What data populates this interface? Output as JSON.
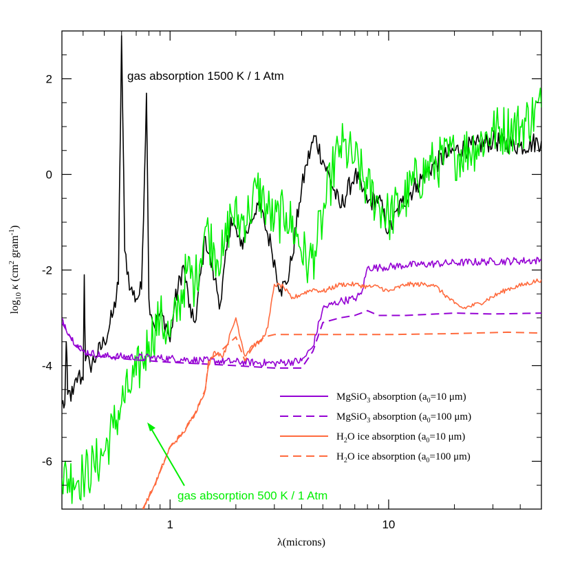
{
  "chart_data": {
    "type": "line",
    "x_scale": "log",
    "xlim": [
      0.32,
      50
    ],
    "ylim": [
      -7,
      3
    ],
    "xlabel": "λ(microns)",
    "ylabel": "log10 κ (cm² gram⁻¹)",
    "ylabel_parts": {
      "log": "log",
      "sub": "10",
      "kappa": "κ",
      "open": "(cm",
      "sup1": "2",
      "mid": " gram",
      "sup2": "-1",
      "close": ")"
    },
    "x_ticks": [
      {
        "value": 1,
        "label": "1"
      },
      {
        "value": 10,
        "label": "10"
      }
    ],
    "y_ticks": [
      {
        "value": 2,
        "label": "2"
      },
      {
        "value": 0,
        "label": "0"
      },
      {
        "value": -2,
        "label": "-2"
      },
      {
        "value": -4,
        "label": "-4"
      },
      {
        "value": -6,
        "label": "-6"
      }
    ],
    "annotations": {
      "gas_1500": "gas absorption 1500 K / 1 Atm",
      "gas_500": "gas absorption 500 K / 1 Atm"
    },
    "legend": {
      "placement": "lower-right",
      "entries": [
        {
          "pre": "MgSiO",
          "sub": "3",
          "post": " absorption (a",
          "sub2": "0",
          "post2": "=10 μm)",
          "color": "#9400d3",
          "dash": false
        },
        {
          "pre": "MgSiO",
          "sub": "3",
          "post": " absorption (a",
          "sub2": "0",
          "post2": "=100 μm)",
          "color": "#9400d3",
          "dash": true
        },
        {
          "pre": "H",
          "sub": "2",
          "post": "O ice absorption (a",
          "sub2": "0",
          "post2": "=10 μm)",
          "color": "#ff6a3d",
          "dash": false
        },
        {
          "pre": "H",
          "sub": "2",
          "post": "O ice absorption (a",
          "sub2": "0",
          "post2": "=100 μm)",
          "color": "#ff6a3d",
          "dash": true
        }
      ]
    },
    "series": [
      {
        "color": "#000000",
        "dash": false,
        "noise": 0.22,
        "points": [
          [
            0.32,
            -4.8
          ],
          [
            0.33,
            -4.8
          ],
          [
            0.335,
            -3.5
          ],
          [
            0.34,
            -4.6
          ],
          [
            0.36,
            -4.6
          ],
          [
            0.38,
            -4.2
          ],
          [
            0.4,
            -4.3
          ],
          [
            0.405,
            -2.1
          ],
          [
            0.41,
            -3.9
          ],
          [
            0.43,
            -4.0
          ],
          [
            0.46,
            -3.8
          ],
          [
            0.5,
            -3.5
          ],
          [
            0.55,
            -2.9
          ],
          [
            0.58,
            -2.3
          ],
          [
            0.6,
            2.9
          ],
          [
            0.62,
            -1.6
          ],
          [
            0.66,
            -2.4
          ],
          [
            0.7,
            -2.6
          ],
          [
            0.74,
            -2.4
          ],
          [
            0.78,
            1.7
          ],
          [
            0.8,
            -2.6
          ],
          [
            0.85,
            -3.2
          ],
          [
            0.9,
            -2.9
          ],
          [
            0.97,
            -3.2
          ],
          [
            1.0,
            -3.5
          ],
          [
            1.05,
            -2.7
          ],
          [
            1.15,
            -1.9
          ],
          [
            1.25,
            -3.0
          ],
          [
            1.3,
            -3.1
          ],
          [
            1.45,
            -1.3
          ],
          [
            1.6,
            -2.2
          ],
          [
            1.7,
            -2.7
          ],
          [
            1.9,
            -0.9
          ],
          [
            2.1,
            -1.5
          ],
          [
            2.3,
            -1.1
          ],
          [
            2.5,
            -0.6
          ],
          [
            2.7,
            -1.0
          ],
          [
            2.9,
            -1.5
          ],
          [
            3.2,
            -2.4
          ],
          [
            3.4,
            -2.3
          ],
          [
            3.6,
            -1.8
          ],
          [
            3.9,
            -0.6
          ],
          [
            4.2,
            0.2
          ],
          [
            4.6,
            0.8
          ],
          [
            5.0,
            0.3
          ],
          [
            5.4,
            -0.1
          ],
          [
            6.0,
            -0.7
          ],
          [
            7.0,
            0.0
          ],
          [
            8.0,
            -0.6
          ],
          [
            9.0,
            -0.5
          ],
          [
            10.0,
            -1.2
          ],
          [
            11.5,
            -0.6
          ],
          [
            13.5,
            -0.2
          ],
          [
            16,
            0.2
          ],
          [
            20,
            0.5
          ],
          [
            25,
            0.6
          ],
          [
            30,
            0.7
          ],
          [
            40,
            0.6
          ],
          [
            50,
            0.7
          ]
        ]
      },
      {
        "color": "#00ee00",
        "dash": false,
        "noise": 0.55,
        "points": [
          [
            0.32,
            -6.35
          ],
          [
            0.36,
            -6.35
          ],
          [
            0.4,
            -6.3
          ],
          [
            0.45,
            -6.1
          ],
          [
            0.5,
            -5.8
          ],
          [
            0.55,
            -5.3
          ],
          [
            0.6,
            -4.8
          ],
          [
            0.65,
            -4.5
          ],
          [
            0.7,
            -4.2
          ],
          [
            0.75,
            -3.9
          ],
          [
            0.8,
            -3.5
          ],
          [
            0.9,
            -3.0
          ],
          [
            1.0,
            -3.4
          ],
          [
            1.1,
            -2.7
          ],
          [
            1.2,
            -2.0
          ],
          [
            1.3,
            -2.3
          ],
          [
            1.45,
            -1.1
          ],
          [
            1.6,
            -1.6
          ],
          [
            1.75,
            -1.7
          ],
          [
            1.9,
            -0.8
          ],
          [
            2.1,
            -1.0
          ],
          [
            2.3,
            -0.8
          ],
          [
            2.5,
            -0.3
          ],
          [
            2.7,
            -0.6
          ],
          [
            3.0,
            -1.0
          ],
          [
            3.4,
            -0.8
          ],
          [
            3.8,
            -1.3
          ],
          [
            4.3,
            -1.9
          ],
          [
            4.6,
            -1.6
          ],
          [
            5.0,
            -0.9
          ],
          [
            5.5,
            0.0
          ],
          [
            6.0,
            0.6
          ],
          [
            7.0,
            0.3
          ],
          [
            8.0,
            -0.3
          ],
          [
            9.0,
            -0.6
          ],
          [
            10.0,
            -0.9
          ],
          [
            11.5,
            -0.6
          ],
          [
            13.5,
            -0.1
          ],
          [
            16,
            0.2
          ],
          [
            20,
            0.4
          ],
          [
            25,
            0.6
          ],
          [
            30,
            0.9
          ],
          [
            40,
            1.0
          ],
          [
            50,
            1.4
          ]
        ]
      },
      {
        "color": "#9400d3",
        "dash": false,
        "noise": 0.08,
        "points": [
          [
            0.32,
            -3.0
          ],
          [
            0.35,
            -3.4
          ],
          [
            0.4,
            -3.7
          ],
          [
            0.5,
            -3.8
          ],
          [
            0.7,
            -3.82
          ],
          [
            1.0,
            -3.85
          ],
          [
            1.5,
            -3.9
          ],
          [
            2.0,
            -3.92
          ],
          [
            3.0,
            -3.95
          ],
          [
            4.0,
            -3.9
          ],
          [
            4.5,
            -3.6
          ],
          [
            5.0,
            -2.8
          ],
          [
            6.0,
            -2.65
          ],
          [
            7.0,
            -2.6
          ],
          [
            7.5,
            -2.5
          ],
          [
            8.0,
            -1.95
          ],
          [
            9.0,
            -1.95
          ],
          [
            12,
            -1.9
          ],
          [
            20,
            -1.85
          ],
          [
            30,
            -1.82
          ],
          [
            50,
            -1.8
          ]
        ]
      },
      {
        "color": "#9400d3",
        "dash": true,
        "noise": 0,
        "points": [
          [
            0.32,
            -3.1
          ],
          [
            0.36,
            -3.5
          ],
          [
            0.4,
            -3.75
          ],
          [
            0.5,
            -3.82
          ],
          [
            0.7,
            -3.88
          ],
          [
            1.0,
            -3.93
          ],
          [
            1.5,
            -3.97
          ],
          [
            2.0,
            -4.0
          ],
          [
            3.0,
            -4.05
          ],
          [
            4.0,
            -4.05
          ],
          [
            4.5,
            -3.7
          ],
          [
            5.0,
            -3.1
          ],
          [
            6.0,
            -3.0
          ],
          [
            7.0,
            -2.95
          ],
          [
            8.0,
            -2.85
          ],
          [
            9.0,
            -2.95
          ],
          [
            12,
            -2.95
          ],
          [
            20,
            -2.9
          ],
          [
            30,
            -2.92
          ],
          [
            50,
            -2.9
          ]
        ]
      },
      {
        "color": "#ff6a3d",
        "dash": false,
        "noise": 0.05,
        "points": [
          [
            0.75,
            -7.0
          ],
          [
            0.85,
            -6.5
          ],
          [
            1.0,
            -5.7
          ],
          [
            1.15,
            -5.4
          ],
          [
            1.3,
            -5.0
          ],
          [
            1.45,
            -4.5
          ],
          [
            1.5,
            -4.0
          ],
          [
            1.6,
            -3.7
          ],
          [
            1.75,
            -3.8
          ],
          [
            2.0,
            -3.0
          ],
          [
            2.2,
            -3.8
          ],
          [
            2.35,
            -3.6
          ],
          [
            2.6,
            -3.5
          ],
          [
            2.8,
            -3.2
          ],
          [
            3.0,
            -2.3
          ],
          [
            3.3,
            -2.35
          ],
          [
            3.6,
            -2.6
          ],
          [
            4.0,
            -2.5
          ],
          [
            4.5,
            -2.4
          ],
          [
            5.0,
            -2.45
          ],
          [
            6.0,
            -2.3
          ],
          [
            7.0,
            -2.3
          ],
          [
            8.0,
            -2.35
          ],
          [
            9.0,
            -2.35
          ],
          [
            10.0,
            -2.45
          ],
          [
            12,
            -2.3
          ],
          [
            16,
            -2.3
          ],
          [
            20,
            -2.7
          ],
          [
            22,
            -2.8
          ],
          [
            26,
            -2.7
          ],
          [
            35,
            -2.4
          ],
          [
            50,
            -2.2
          ]
        ]
      },
      {
        "color": "#ff6a3d",
        "dash": true,
        "noise": 0,
        "points": [
          [
            0.75,
            -7.0
          ],
          [
            0.85,
            -6.5
          ],
          [
            1.0,
            -5.7
          ],
          [
            1.15,
            -5.4
          ],
          [
            1.3,
            -5.0
          ],
          [
            1.45,
            -4.5
          ],
          [
            1.5,
            -3.9
          ],
          [
            1.7,
            -3.7
          ],
          [
            2.0,
            -3.4
          ],
          [
            2.2,
            -3.9
          ],
          [
            2.4,
            -3.6
          ],
          [
            2.7,
            -3.4
          ],
          [
            3.0,
            -3.35
          ],
          [
            4.0,
            -3.35
          ],
          [
            6.0,
            -3.35
          ],
          [
            10,
            -3.35
          ],
          [
            20,
            -3.33
          ],
          [
            35,
            -3.3
          ],
          [
            50,
            -3.32
          ]
        ]
      }
    ]
  }
}
